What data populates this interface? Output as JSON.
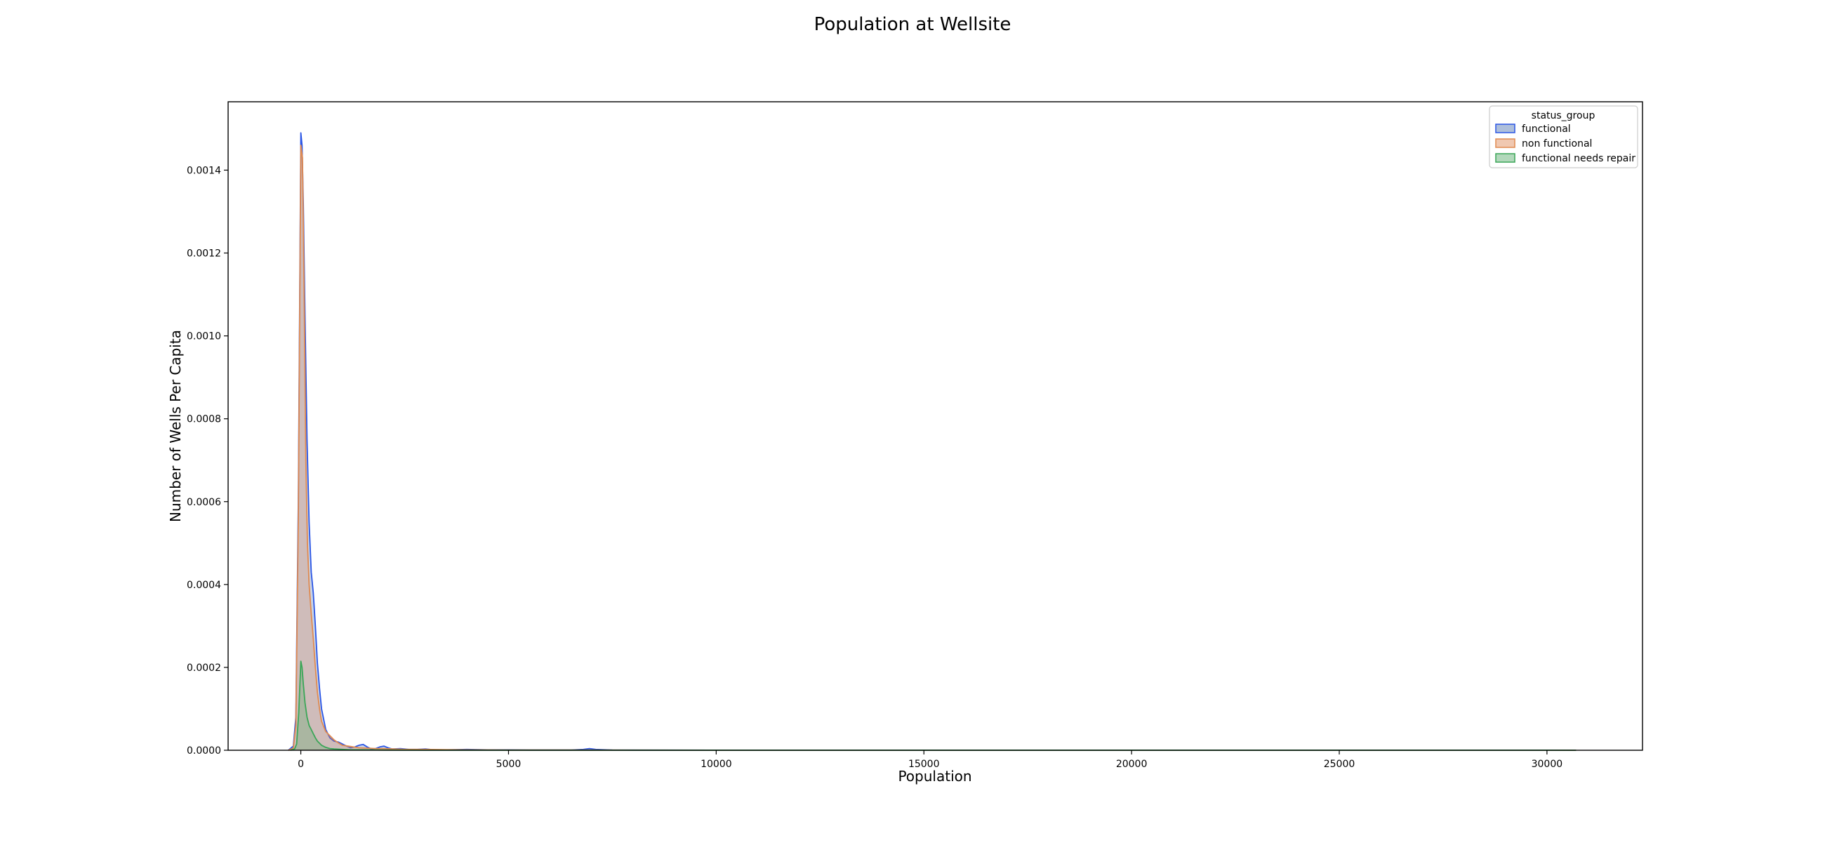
{
  "chart_data": {
    "type": "area",
    "title": "Population at Wellsite",
    "xlabel": "Population",
    "ylabel": "Number of Wells Per Capita",
    "xlim": [
      -1750,
      32300
    ],
    "ylim": [
      0,
      0.001565
    ],
    "xticks": [
      0,
      5000,
      10000,
      15000,
      20000,
      25000,
      30000
    ],
    "yticks": [
      0.0,
      0.0002,
      0.0004,
      0.0006,
      0.0008,
      0.001,
      0.0012,
      0.0014
    ],
    "ytick_labels": [
      "0.0000",
      "0.0002",
      "0.0004",
      "0.0006",
      "0.0008",
      "0.0010",
      "0.0012",
      "0.0014"
    ],
    "grid": false,
    "legend": {
      "title": "status_group",
      "position": "top-right"
    },
    "series": [
      {
        "name": "functional",
        "color": "#4c72b0",
        "line_color": "#2a55e5",
        "x": [
          -300,
          -180,
          -120,
          -60,
          0,
          30,
          60,
          100,
          150,
          200,
          250,
          300,
          350,
          400,
          450,
          500,
          600,
          700,
          800,
          900,
          1000,
          1100,
          1200,
          1300,
          1400,
          1500,
          1600,
          1700,
          1800,
          1900,
          2000,
          2100,
          2200,
          2400,
          2600,
          2800,
          3000,
          3200,
          3500,
          4000,
          4500,
          5000,
          5500,
          6000,
          6500,
          6800,
          6950,
          7100,
          7500,
          8000,
          10000,
          15000,
          20000,
          25000,
          30000,
          30700
        ],
        "y": [
          0,
          1e-05,
          8e-05,
          0.0006,
          0.00149,
          0.00146,
          0.00132,
          0.00105,
          0.00075,
          0.00055,
          0.00043,
          0.00038,
          0.0003,
          0.00021,
          0.00015,
          0.0001,
          5e-05,
          3e-05,
          2.2e-05,
          2e-05,
          1.5e-05,
          1e-05,
          6e-06,
          8e-06,
          1.2e-05,
          1.4e-05,
          8e-06,
          3e-06,
          4e-06,
          8e-06,
          1e-05,
          6e-06,
          3e-06,
          4e-06,
          2e-06,
          2e-06,
          3e-06,
          1e-06,
          1e-06,
          2e-06,
          1e-06,
          1e-06,
          5e-07,
          5e-07,
          5e-07,
          2e-06,
          4e-06,
          2e-06,
          5e-07,
          3e-07,
          2e-07,
          1e-07,
          1e-07,
          1e-07,
          1e-07,
          0
        ]
      },
      {
        "name": "non functional",
        "color": "#dd8452",
        "line_color": "#e08a50",
        "x": [
          -300,
          -180,
          -120,
          -60,
          0,
          40,
          80,
          120,
          160,
          200,
          250,
          300,
          350,
          400,
          450,
          500,
          600,
          700,
          800,
          900,
          1000,
          1200,
          1400,
          1600,
          1800,
          2000,
          2500,
          3000,
          4000,
          5000,
          7000,
          10000,
          15000,
          20000,
          25000,
          30000,
          30700
        ],
        "y": [
          0,
          5e-06,
          6e-05,
          0.00055,
          0.00146,
          0.00143,
          0.0011,
          0.0007,
          0.0005,
          0.0004,
          0.00033,
          0.00027,
          0.0002,
          0.00014,
          0.0001,
          7e-05,
          4.5e-05,
          3.5e-05,
          2.5e-05,
          1.8e-05,
          1.2e-05,
          9e-06,
          6e-06,
          5e-06,
          4e-06,
          4e-06,
          2e-06,
          2e-06,
          1e-06,
          5e-07,
          5e-07,
          2e-07,
          1e-07,
          1e-07,
          1e-07,
          1e-07,
          0
        ]
      },
      {
        "name": "functional needs repair",
        "color": "#55a868",
        "line_color": "#3aa657",
        "x": [
          -250,
          -150,
          -100,
          -50,
          0,
          30,
          60,
          100,
          150,
          200,
          250,
          300,
          350,
          400,
          500,
          600,
          700,
          800,
          1000,
          1200,
          1500,
          2000,
          3000,
          5000,
          10000,
          15000,
          20000,
          25000,
          30000,
          30700
        ],
        "y": [
          0,
          3e-06,
          1.5e-05,
          9e-05,
          0.000215,
          0.0002,
          0.00016,
          0.000115,
          8e-05,
          6e-05,
          5e-05,
          4e-05,
          3e-05,
          2.2e-05,
          1.2e-05,
          7e-06,
          4e-06,
          3e-06,
          2e-06,
          1e-06,
          1e-06,
          5e-07,
          2e-07,
          1e-07,
          1e-07,
          1e-07,
          1e-07,
          1e-07,
          1e-07,
          0
        ]
      }
    ]
  }
}
